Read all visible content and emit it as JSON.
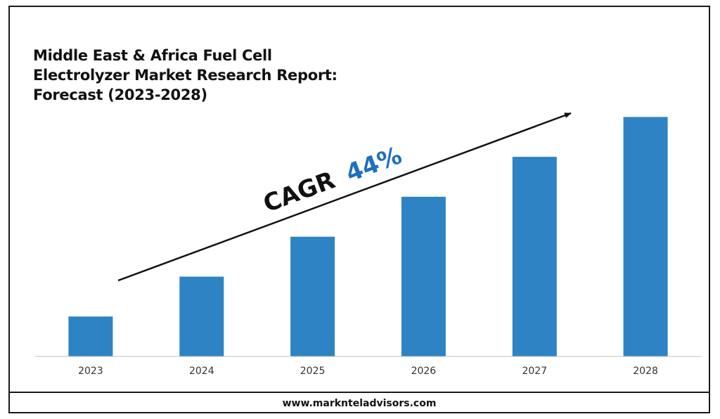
{
  "chart_data": {
    "type": "bar",
    "title_lines": [
      "Middle East & Africa Fuel Cell",
      "Electrolyzer Market Research Report:",
      "Forecast (2023-2028)"
    ],
    "categories": [
      "2023",
      "2024",
      "2025",
      "2026",
      "2027",
      "2028"
    ],
    "values": [
      1.0,
      2.0,
      3.0,
      4.0,
      5.0,
      6.0
    ],
    "ylim": [
      0,
      6.2
    ],
    "xlabel": "",
    "ylabel": "",
    "grid": false,
    "annotation": {
      "label": "CAGR",
      "value": "44%"
    },
    "colors": {
      "bar": "#2e83c4",
      "cagr_value": "#1f6fbd",
      "text": "#111111",
      "axis": "#bfbfbf"
    }
  },
  "footer": {
    "website": "www.marknteladvisors.com"
  }
}
